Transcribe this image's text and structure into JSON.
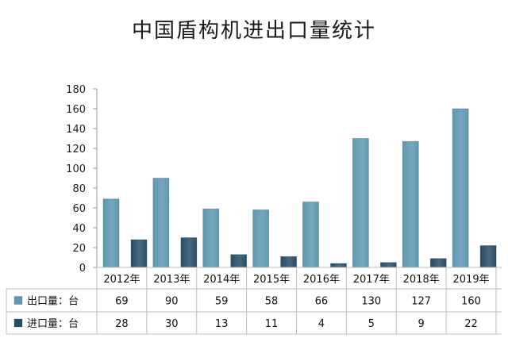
{
  "chart_data": {
    "type": "bar",
    "title": "中国盾构机进出口量统计",
    "categories": [
      "2012年",
      "2013年",
      "2014年",
      "2015年",
      "2016年",
      "2017年",
      "2018年",
      "2019年"
    ],
    "series": [
      {
        "name": "出口量：台",
        "values": [
          69,
          90,
          59,
          58,
          66,
          130,
          127,
          160
        ],
        "color": "#5f97b2"
      },
      {
        "name": "进口量：台",
        "values": [
          28,
          30,
          13,
          11,
          4,
          5,
          9,
          22
        ],
        "color": "#284d66"
      }
    ],
    "ylim": [
      0,
      180
    ],
    "yticks": [
      0,
      20,
      40,
      60,
      80,
      100,
      120,
      140,
      160,
      180
    ],
    "grid": false,
    "legend": "data-table-left"
  },
  "colors": {
    "axis": "#9a9a9a",
    "table_border": "#bdbdbd"
  }
}
